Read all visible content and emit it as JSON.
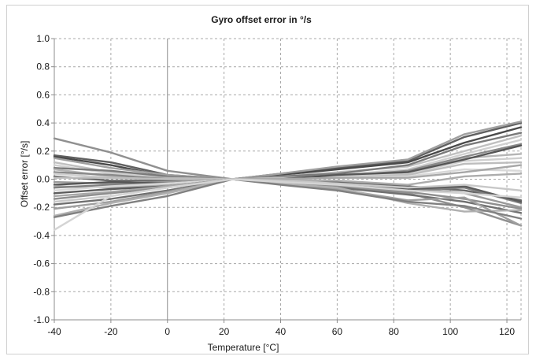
{
  "chart_data": {
    "type": "line",
    "title": "Gyro offset error in °/s",
    "xlabel": "Temperature [°C]",
    "ylabel": "Offset error [°/s]",
    "xlim": [
      -40,
      125
    ],
    "ylim": [
      -1.0,
      1.0
    ],
    "x_ticks": [
      -40,
      -20,
      0,
      20,
      40,
      60,
      80,
      100,
      120
    ],
    "x_tick_labels": [
      "-40",
      "-20",
      "0",
      "20",
      "40",
      "60",
      "80",
      "100",
      "120"
    ],
    "y_ticks": [
      1.0,
      0.8,
      0.6,
      0.4,
      0.2,
      0.0,
      -0.2,
      -0.4,
      -0.6,
      -0.8,
      -1.0
    ],
    "y_tick_labels": [
      "1.0",
      "0.8",
      "0.6",
      "0.4",
      "0.2",
      "0.0",
      "-0.2",
      "-0.4",
      "-0.6",
      "-0.8",
      "-1.0"
    ],
    "grid": true,
    "legend": "none",
    "x": [
      -40,
      -20,
      0,
      23,
      40,
      60,
      85,
      105,
      125
    ],
    "series": [
      {
        "color": "#909090",
        "values": [
          0.29,
          0.19,
          0.06,
          0.0,
          -0.02,
          -0.05,
          -0.1,
          -0.2,
          -0.33
        ]
      },
      {
        "color": "#606060",
        "values": [
          0.17,
          0.12,
          0.03,
          0.0,
          0.04,
          0.08,
          0.13,
          0.3,
          0.4
        ]
      },
      {
        "color": "#4a4a4a",
        "values": [
          0.16,
          0.1,
          0.02,
          0.0,
          0.03,
          0.07,
          0.12,
          0.26,
          0.37
        ]
      },
      {
        "color": "#a0a0a0",
        "values": [
          0.15,
          0.08,
          0.03,
          0.0,
          0.04,
          0.09,
          0.14,
          0.32,
          0.41
        ]
      },
      {
        "color": "#c0c0c0",
        "values": [
          0.12,
          0.05,
          0.01,
          0.0,
          0.02,
          0.05,
          0.09,
          0.2,
          0.31
        ]
      },
      {
        "color": "#d0d0d0",
        "values": [
          0.1,
          0.04,
          0.02,
          0.0,
          0.01,
          0.03,
          0.07,
          0.18,
          0.28
        ]
      },
      {
        "color": "#7a7a7a",
        "values": [
          0.08,
          0.06,
          0.02,
          0.0,
          0.02,
          0.04,
          0.1,
          0.24,
          0.33
        ]
      },
      {
        "color": "#b5b5b5",
        "values": [
          0.07,
          0.02,
          0.01,
          0.0,
          0.01,
          0.02,
          0.05,
          0.15,
          0.18
        ]
      },
      {
        "color": "#8a8a8a",
        "values": [
          0.05,
          0.03,
          0.0,
          0.0,
          0.01,
          0.02,
          0.06,
          0.16,
          0.25
        ]
      },
      {
        "color": "#cfcfcf",
        "values": [
          0.04,
          0.01,
          0.0,
          0.0,
          0.0,
          0.02,
          0.04,
          0.13,
          0.15
        ]
      },
      {
        "color": "#696969",
        "values": [
          0.02,
          -0.01,
          -0.01,
          0.0,
          -0.01,
          -0.02,
          -0.05,
          -0.08,
          -0.15
        ]
      },
      {
        "color": "#bdbdbd",
        "values": [
          0.01,
          0.01,
          0.0,
          0.0,
          0.01,
          0.01,
          0.03,
          0.11,
          0.12
        ]
      },
      {
        "color": "#9a9a9a",
        "values": [
          -0.02,
          -0.03,
          -0.02,
          0.0,
          -0.02,
          -0.03,
          -0.06,
          -0.1,
          -0.2
        ]
      },
      {
        "color": "#555555",
        "values": [
          -0.04,
          -0.02,
          -0.03,
          0.0,
          0.0,
          0.03,
          0.05,
          0.14,
          0.24
        ]
      },
      {
        "color": "#acacac",
        "values": [
          -0.05,
          -0.06,
          -0.04,
          0.0,
          -0.01,
          -0.01,
          -0.04,
          0.02,
          0.04
        ]
      },
      {
        "color": "#7f7f7f",
        "values": [
          -0.06,
          -0.04,
          -0.03,
          0.0,
          -0.02,
          -0.05,
          -0.08,
          -0.06,
          -0.17
        ]
      },
      {
        "color": "#d8d8d8",
        "values": [
          -0.08,
          -0.05,
          -0.03,
          0.0,
          0.0,
          0.01,
          0.02,
          0.07,
          0.06
        ]
      },
      {
        "color": "#5c5c5c",
        "values": [
          -0.1,
          -0.07,
          -0.05,
          0.0,
          -0.02,
          -0.04,
          -0.07,
          -0.05,
          -0.16
        ]
      },
      {
        "color": "#a7a7a7",
        "values": [
          -0.12,
          -0.09,
          -0.05,
          0.0,
          0.0,
          0.01,
          0.01,
          0.05,
          0.1
        ]
      },
      {
        "color": "#8f8f8f",
        "values": [
          -0.14,
          -0.1,
          -0.06,
          0.0,
          -0.02,
          -0.05,
          -0.09,
          -0.14,
          -0.21
        ]
      },
      {
        "color": "#c8c8c8",
        "values": [
          -0.16,
          -0.12,
          -0.06,
          0.0,
          -0.01,
          -0.03,
          -0.06,
          -0.04,
          -0.08
        ]
      },
      {
        "color": "#707070",
        "values": [
          -0.18,
          -0.14,
          -0.08,
          0.0,
          -0.03,
          -0.06,
          -0.11,
          -0.16,
          -0.24
        ]
      },
      {
        "color": "#9f9f9f",
        "values": [
          -0.21,
          -0.16,
          -0.09,
          0.0,
          -0.03,
          -0.07,
          -0.15,
          -0.13,
          -0.33
        ]
      },
      {
        "color": "#b0b0b0",
        "values": [
          -0.26,
          -0.17,
          -0.1,
          0.0,
          -0.03,
          -0.06,
          -0.17,
          -0.23,
          -0.22
        ]
      },
      {
        "color": "#808080",
        "values": [
          -0.27,
          -0.19,
          -0.12,
          0.0,
          -0.04,
          -0.08,
          -0.16,
          -0.19,
          -0.28
        ]
      },
      {
        "color": "#d4d4d4",
        "values": [
          -0.36,
          -0.12,
          -0.06,
          0.0,
          -0.02,
          -0.04,
          -0.08,
          -0.1,
          -0.13
        ]
      }
    ]
  }
}
